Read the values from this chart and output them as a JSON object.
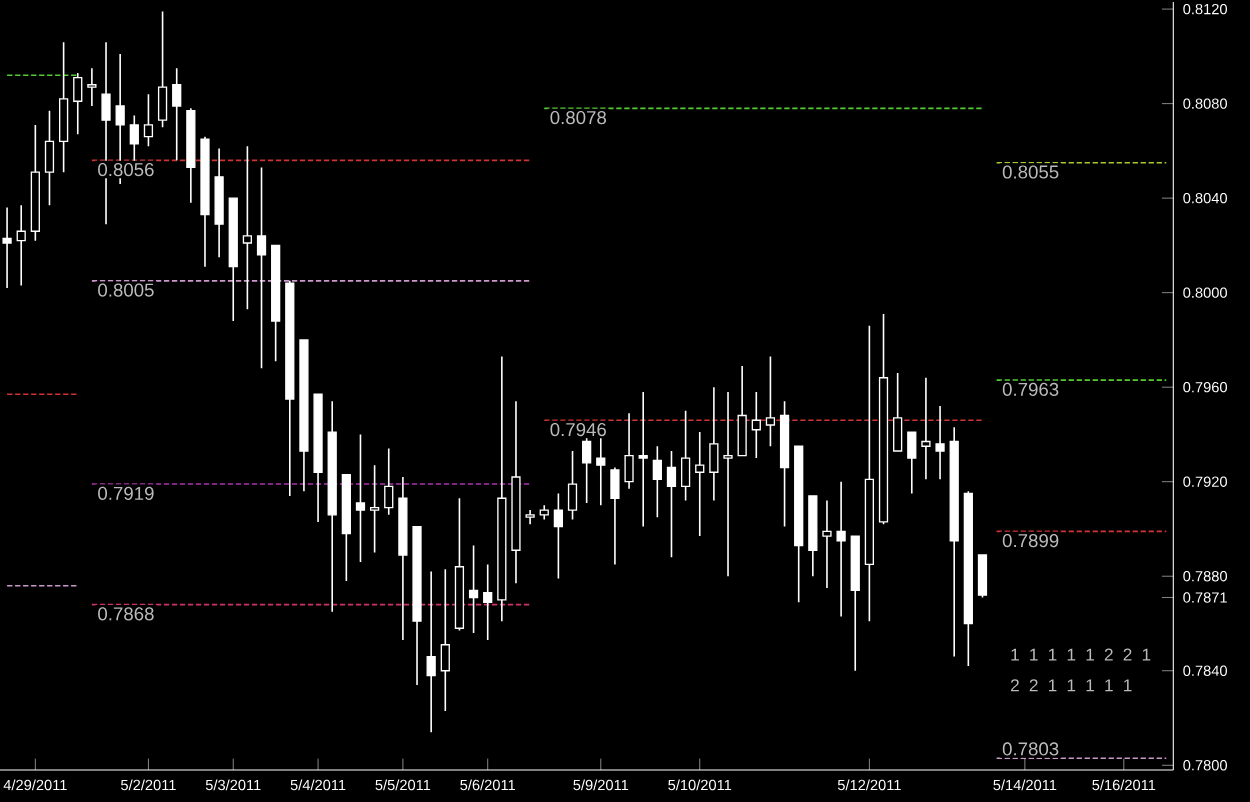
{
  "chart_data": {
    "type": "candlestick",
    "color": "#ffffff",
    "categories": [
      null,
      null,
      "4/29/2011",
      null,
      null,
      null,
      null,
      null,
      null,
      null,
      "5/2/2011",
      null,
      null,
      null,
      null,
      null,
      "5/3/2011",
      null,
      null,
      null,
      null,
      null,
      "5/4/2011",
      null,
      null,
      null,
      null,
      null,
      "5/5/2011",
      null,
      null,
      null,
      null,
      null,
      "5/6/2011",
      null,
      null,
      null,
      null,
      null,
      null,
      null,
      "5/9/2011",
      null,
      null,
      null,
      null,
      null,
      null,
      "5/10/2011",
      null,
      null,
      null,
      null,
      null,
      null,
      null,
      null,
      null,
      null,
      null,
      "5/12/2011",
      null,
      null,
      null,
      null,
      null,
      null,
      null,
      null,
      null,
      null,
      "5/14/2011",
      null,
      null,
      null,
      null,
      null,
      null,
      "5/16/2011",
      null,
      null,
      null
    ],
    "ohlc": [
      [
        0.8023,
        0.8036,
        0.8002,
        0.8021
      ],
      [
        0.8022,
        0.8037,
        0.8003,
        0.8026
      ],
      [
        0.8026,
        0.8071,
        0.8022,
        0.8051
      ],
      [
        0.8051,
        0.8077,
        0.8037,
        0.8064
      ],
      [
        0.8064,
        0.8106,
        0.8051,
        0.8082
      ],
      [
        0.8081,
        0.8093,
        0.8067,
        0.8091
      ],
      [
        0.8087,
        0.8095,
        0.8079,
        0.8088
      ],
      [
        0.8084,
        0.8106,
        0.8029,
        0.8073
      ],
      [
        0.8079,
        0.8101,
        0.8046,
        0.8071
      ],
      [
        0.8071,
        0.8075,
        0.805,
        0.8063
      ],
      [
        0.8066,
        0.8084,
        0.8062,
        0.8071
      ],
      [
        0.8073,
        0.8119,
        0.807,
        0.8087
      ],
      [
        0.8088,
        0.8095,
        0.8056,
        0.8079
      ],
      [
        0.8077,
        0.8078,
        0.8038,
        0.8053
      ],
      [
        0.8065,
        0.8066,
        0.8011,
        0.8033
      ],
      [
        0.8049,
        0.8061,
        0.8015,
        0.8029
      ],
      [
        0.804,
        0.804,
        0.7988,
        0.8011
      ],
      [
        0.8021,
        0.8062,
        0.7993,
        0.8024
      ],
      [
        0.8024,
        0.8053,
        0.7968,
        0.8016
      ],
      [
        0.802,
        0.802,
        0.7971,
        0.7988
      ],
      [
        0.8004,
        0.8005,
        0.7914,
        0.7955
      ],
      [
        0.798,
        0.798,
        0.7916,
        0.7933
      ],
      [
        0.7957,
        0.7957,
        0.7903,
        0.7924
      ],
      [
        0.7941,
        0.7954,
        0.7865,
        0.7906
      ],
      [
        0.7923,
        0.7923,
        0.7878,
        0.7898
      ],
      [
        0.7911,
        0.794,
        0.7886,
        0.7908
      ],
      [
        0.7908,
        0.7927,
        0.789,
        0.7909
      ],
      [
        0.7909,
        0.7934,
        0.7906,
        0.7918
      ],
      [
        0.7913,
        0.7922,
        0.7853,
        0.7889
      ],
      [
        0.7901,
        0.7901,
        0.7834,
        0.7861
      ],
      [
        0.7846,
        0.7882,
        0.7814,
        0.7838
      ],
      [
        0.784,
        0.7883,
        0.7823,
        0.7851
      ],
      [
        0.7858,
        0.7913,
        0.7857,
        0.7884
      ],
      [
        0.7874,
        0.7893,
        0.7856,
        0.7871
      ],
      [
        0.7873,
        0.7885,
        0.7853,
        0.7869
      ],
      [
        0.787,
        0.7973,
        0.7861,
        0.7913
      ],
      [
        0.7891,
        0.7954,
        0.7877,
        0.7922
      ],
      [
        0.7905,
        0.7908,
        0.7902,
        0.7906
      ],
      [
        0.7906,
        0.791,
        0.7904,
        0.7908
      ],
      [
        0.7908,
        0.7915,
        0.7879,
        0.7901
      ],
      [
        0.7908,
        0.7933,
        0.7904,
        0.7919
      ],
      [
        0.7937,
        0.794,
        0.7911,
        0.7928
      ],
      [
        0.793,
        0.7939,
        0.791,
        0.7927
      ],
      [
        0.7925,
        0.7926,
        0.7885,
        0.7913
      ],
      [
        0.792,
        0.7949,
        0.7917,
        0.7931
      ],
      [
        0.7931,
        0.7958,
        0.7901,
        0.793
      ],
      [
        0.7929,
        0.7935,
        0.7905,
        0.7921
      ],
      [
        0.7926,
        0.7933,
        0.7888,
        0.7918
      ],
      [
        0.7918,
        0.795,
        0.7912,
        0.793
      ],
      [
        0.7924,
        0.7941,
        0.7897,
        0.7927
      ],
      [
        0.7924,
        0.796,
        0.7912,
        0.7936
      ],
      [
        0.793,
        0.7958,
        0.788,
        0.7931
      ],
      [
        0.7931,
        0.7969,
        0.7931,
        0.7948
      ],
      [
        0.7942,
        0.7958,
        0.793,
        0.7946
      ],
      [
        0.7944,
        0.7973,
        0.7935,
        0.7947
      ],
      [
        0.7948,
        0.7954,
        0.7901,
        0.7926
      ],
      [
        0.7935,
        0.7935,
        0.7869,
        0.7893
      ],
      [
        0.7914,
        0.7914,
        0.788,
        0.7891
      ],
      [
        0.7897,
        0.7912,
        0.7875,
        0.7899
      ],
      [
        0.7899,
        0.792,
        0.7863,
        0.7895
      ],
      [
        0.7897,
        0.7897,
        0.784,
        0.7874
      ],
      [
        0.7885,
        0.7986,
        0.7861,
        0.7921
      ],
      [
        0.7903,
        0.7991,
        0.7902,
        0.7964
      ],
      [
        0.7933,
        0.7966,
        0.7933,
        0.7947
      ],
      [
        0.7941,
        0.7941,
        0.7915,
        0.793
      ],
      [
        0.7935,
        0.7964,
        0.7921,
        0.7937
      ],
      [
        0.7936,
        0.7952,
        0.7921,
        0.7933
      ],
      [
        0.7937,
        0.7943,
        0.7846,
        0.7895
      ],
      [
        0.7915,
        0.7916,
        0.7842,
        0.786
      ],
      [
        0.7889,
        0.7889,
        0.7871,
        0.7872
      ],
      null,
      null,
      null,
      null,
      null,
      null,
      null,
      null,
      null,
      null,
      null,
      null,
      null
    ],
    "series": [
      {
        "type": "line",
        "color": "#55cc33",
        "line_style": "dashed",
        "values": [
          0.8092,
          0.8092,
          0.8092,
          0.8092,
          0.8092,
          0.8092,
          null,
          null,
          null,
          null,
          null,
          null,
          null,
          null,
          null,
          null,
          null,
          null,
          null,
          null,
          null,
          null,
          null,
          null,
          null,
          null,
          null,
          null,
          null,
          null,
          null,
          null,
          null,
          null,
          null,
          null,
          null,
          null,
          null,
          null,
          null,
          null,
          null,
          null,
          null,
          null,
          null,
          null,
          null,
          null,
          null,
          null,
          null,
          null,
          null,
          null,
          null,
          null,
          null,
          null,
          null,
          null,
          null,
          null,
          null,
          null,
          null,
          null,
          null,
          null,
          null,
          null,
          null,
          null,
          null,
          null,
          null,
          null,
          null,
          null,
          null,
          null,
          null
        ]
      },
      {
        "type": "line",
        "color": "#cc3333",
        "line_style": "dashed",
        "values": [
          0.7957,
          0.7957,
          0.7957,
          0.7957,
          0.7957,
          0.7957,
          null,
          null,
          null,
          null,
          null,
          null,
          null,
          null,
          null,
          null,
          null,
          null,
          null,
          null,
          null,
          null,
          null,
          null,
          null,
          null,
          null,
          null,
          null,
          null,
          null,
          null,
          null,
          null,
          null,
          null,
          null,
          null,
          null,
          null,
          null,
          null,
          null,
          null,
          null,
          null,
          null,
          null,
          null,
          null,
          null,
          null,
          null,
          null,
          null,
          null,
          null,
          null,
          null,
          null,
          null,
          null,
          null,
          null,
          null,
          null,
          null,
          null,
          null,
          null,
          null,
          null,
          null,
          null,
          null,
          null,
          null,
          null,
          null,
          null,
          null,
          null,
          null
        ]
      },
      {
        "type": "line",
        "color": "#cc99cc",
        "line_style": "dashed",
        "values": [
          0.7876,
          0.7876,
          0.7876,
          0.7876,
          0.7876,
          0.7876,
          null,
          null,
          null,
          null,
          null,
          null,
          null,
          null,
          null,
          null,
          null,
          null,
          null,
          null,
          null,
          null,
          null,
          null,
          null,
          null,
          null,
          null,
          null,
          null,
          null,
          null,
          null,
          null,
          null,
          null,
          null,
          null,
          null,
          null,
          null,
          null,
          null,
          null,
          null,
          null,
          null,
          null,
          null,
          null,
          null,
          null,
          null,
          null,
          null,
          null,
          null,
          null,
          null,
          null,
          null,
          null,
          null,
          null,
          null,
          null,
          null,
          null,
          null,
          null,
          null,
          null,
          null,
          null,
          null,
          null,
          null,
          null,
          null,
          null,
          null,
          null,
          null
        ]
      },
      {
        "type": "line",
        "color": "#cc3333",
        "line_style": "dashed",
        "values": [
          null,
          null,
          null,
          null,
          null,
          null,
          0.8056,
          0.8056,
          0.8056,
          0.8056,
          0.8056,
          0.8056,
          0.8056,
          0.8056,
          0.8056,
          0.8056,
          0.8056,
          0.8056,
          0.8056,
          0.8056,
          0.8056,
          0.8056,
          0.8056,
          0.8056,
          0.8056,
          0.8056,
          0.8056,
          0.8056,
          0.8056,
          0.8056,
          0.8056,
          0.8056,
          0.8056,
          0.8056,
          0.8056,
          0.8056,
          0.8056,
          0.8056,
          null,
          null,
          null,
          null,
          null,
          null,
          null,
          null,
          null,
          null,
          null,
          null,
          null,
          null,
          null,
          null,
          null,
          null,
          null,
          null,
          null,
          null,
          null,
          null,
          null,
          null,
          null,
          null,
          null,
          null,
          null,
          null,
          null,
          null,
          null,
          null,
          null,
          null,
          null,
          null,
          null,
          null,
          null,
          null,
          null
        ]
      },
      {
        "type": "line",
        "color": "#cc99cc",
        "line_style": "dashed",
        "values": [
          null,
          null,
          null,
          null,
          null,
          null,
          0.8005,
          0.8005,
          0.8005,
          0.8005,
          0.8005,
          0.8005,
          0.8005,
          0.8005,
          0.8005,
          0.8005,
          0.8005,
          0.8005,
          0.8005,
          0.8005,
          0.8005,
          0.8005,
          0.8005,
          0.8005,
          0.8005,
          0.8005,
          0.8005,
          0.8005,
          0.8005,
          0.8005,
          0.8005,
          0.8005,
          0.8005,
          0.8005,
          0.8005,
          0.8005,
          0.8005,
          0.8005,
          null,
          null,
          null,
          null,
          null,
          null,
          null,
          null,
          null,
          null,
          null,
          null,
          null,
          null,
          null,
          null,
          null,
          null,
          null,
          null,
          null,
          null,
          null,
          null,
          null,
          null,
          null,
          null,
          null,
          null,
          null,
          null,
          null,
          null,
          null,
          null,
          null,
          null,
          null,
          null,
          null,
          null,
          null,
          null,
          null
        ]
      },
      {
        "type": "line",
        "color": "#aa33aa",
        "line_style": "dashed",
        "values": [
          null,
          null,
          null,
          null,
          null,
          null,
          0.7919,
          0.7919,
          0.7919,
          0.7919,
          0.7919,
          0.7919,
          0.7919,
          0.7919,
          0.7919,
          0.7919,
          0.7919,
          0.7919,
          0.7919,
          0.7919,
          0.7919,
          0.7919,
          0.7919,
          0.7919,
          0.7919,
          0.7919,
          0.7919,
          0.7919,
          0.7919,
          0.7919,
          0.7919,
          0.7919,
          0.7919,
          0.7919,
          0.7919,
          0.7919,
          0.7919,
          0.7919,
          null,
          null,
          null,
          null,
          null,
          null,
          null,
          null,
          null,
          null,
          null,
          null,
          null,
          null,
          null,
          null,
          null,
          null,
          null,
          null,
          null,
          null,
          null,
          null,
          null,
          null,
          null,
          null,
          null,
          null,
          null,
          null,
          null,
          null,
          null,
          null,
          null,
          null,
          null,
          null,
          null,
          null,
          null,
          null,
          null
        ]
      },
      {
        "type": "line",
        "color": "#cc3366",
        "line_style": "dashed",
        "values": [
          null,
          null,
          null,
          null,
          null,
          null,
          0.7868,
          0.7868,
          0.7868,
          0.7868,
          0.7868,
          0.7868,
          0.7868,
          0.7868,
          0.7868,
          0.7868,
          0.7868,
          0.7868,
          0.7868,
          0.7868,
          0.7868,
          0.7868,
          0.7868,
          0.7868,
          0.7868,
          0.7868,
          0.7868,
          0.7868,
          0.7868,
          0.7868,
          0.7868,
          0.7868,
          0.7868,
          0.7868,
          0.7868,
          0.7868,
          0.7868,
          0.7868,
          null,
          null,
          null,
          null,
          null,
          null,
          null,
          null,
          null,
          null,
          null,
          null,
          null,
          null,
          null,
          null,
          null,
          null,
          null,
          null,
          null,
          null,
          null,
          null,
          null,
          null,
          null,
          null,
          null,
          null,
          null,
          null,
          null,
          null,
          null,
          null,
          null,
          null,
          null,
          null,
          null,
          null,
          null,
          null,
          null
        ]
      },
      {
        "type": "line",
        "color": "#55cc33",
        "line_style": "dashed",
        "values": [
          null,
          null,
          null,
          null,
          null,
          null,
          null,
          null,
          null,
          null,
          null,
          null,
          null,
          null,
          null,
          null,
          null,
          null,
          null,
          null,
          null,
          null,
          null,
          null,
          null,
          null,
          null,
          null,
          null,
          null,
          null,
          null,
          null,
          null,
          null,
          null,
          null,
          null,
          0.8078,
          0.8078,
          0.8078,
          0.8078,
          0.8078,
          0.8078,
          0.8078,
          0.8078,
          0.8078,
          0.8078,
          0.8078,
          0.8078,
          0.8078,
          0.8078,
          0.8078,
          0.8078,
          0.8078,
          0.8078,
          0.8078,
          0.8078,
          0.8078,
          0.8078,
          0.8078,
          0.8078,
          0.8078,
          0.8078,
          0.8078,
          0.8078,
          0.8078,
          0.8078,
          0.8078,
          0.8078,
          null,
          null,
          null,
          null,
          null,
          null,
          null,
          null,
          null,
          null,
          null,
          null,
          null
        ]
      },
      {
        "type": "line",
        "color": "#cc3333",
        "line_style": "dashed",
        "values": [
          null,
          null,
          null,
          null,
          null,
          null,
          null,
          null,
          null,
          null,
          null,
          null,
          null,
          null,
          null,
          null,
          null,
          null,
          null,
          null,
          null,
          null,
          null,
          null,
          null,
          null,
          null,
          null,
          null,
          null,
          null,
          null,
          null,
          null,
          null,
          null,
          null,
          null,
          0.7946,
          0.7946,
          0.7946,
          0.7946,
          0.7946,
          0.7946,
          0.7946,
          0.7946,
          0.7946,
          0.7946,
          0.7946,
          0.7946,
          0.7946,
          0.7946,
          0.7946,
          0.7946,
          0.7946,
          0.7946,
          0.7946,
          0.7946,
          0.7946,
          0.7946,
          0.7946,
          0.7946,
          0.7946,
          0.7946,
          0.7946,
          0.7946,
          0.7946,
          0.7946,
          0.7946,
          0.7946,
          null,
          null,
          null,
          null,
          null,
          null,
          null,
          null,
          null,
          null,
          null,
          null,
          null
        ]
      },
      {
        "type": "line",
        "color": "#aacc33",
        "line_style": "dashed",
        "values": [
          null,
          null,
          null,
          null,
          null,
          null,
          null,
          null,
          null,
          null,
          null,
          null,
          null,
          null,
          null,
          null,
          null,
          null,
          null,
          null,
          null,
          null,
          null,
          null,
          null,
          null,
          null,
          null,
          null,
          null,
          null,
          null,
          null,
          null,
          null,
          null,
          null,
          null,
          null,
          null,
          null,
          null,
          null,
          null,
          null,
          null,
          null,
          null,
          null,
          null,
          null,
          null,
          null,
          null,
          null,
          null,
          null,
          null,
          null,
          null,
          null,
          null,
          null,
          null,
          null,
          null,
          null,
          null,
          null,
          null,
          0.8055,
          0.8055,
          0.8055,
          0.8055,
          0.8055,
          0.8055,
          0.8055,
          0.8055,
          0.8055,
          0.8055,
          0.8055,
          0.8055,
          0.8055
        ]
      },
      {
        "type": "line",
        "color": "#55cc33",
        "line_style": "dashed",
        "values": [
          null,
          null,
          null,
          null,
          null,
          null,
          null,
          null,
          null,
          null,
          null,
          null,
          null,
          null,
          null,
          null,
          null,
          null,
          null,
          null,
          null,
          null,
          null,
          null,
          null,
          null,
          null,
          null,
          null,
          null,
          null,
          null,
          null,
          null,
          null,
          null,
          null,
          null,
          null,
          null,
          null,
          null,
          null,
          null,
          null,
          null,
          null,
          null,
          null,
          null,
          null,
          null,
          null,
          null,
          null,
          null,
          null,
          null,
          null,
          null,
          null,
          null,
          null,
          null,
          null,
          null,
          null,
          null,
          null,
          null,
          0.7963,
          0.7963,
          0.7963,
          0.7963,
          0.7963,
          0.7963,
          0.7963,
          0.7963,
          0.7963,
          0.7963,
          0.7963,
          0.7963,
          0.7963
        ]
      },
      {
        "type": "line",
        "color": "#cc3333",
        "line_style": "dashed",
        "values": [
          null,
          null,
          null,
          null,
          null,
          null,
          null,
          null,
          null,
          null,
          null,
          null,
          null,
          null,
          null,
          null,
          null,
          null,
          null,
          null,
          null,
          null,
          null,
          null,
          null,
          null,
          null,
          null,
          null,
          null,
          null,
          null,
          null,
          null,
          null,
          null,
          null,
          null,
          null,
          null,
          null,
          null,
          null,
          null,
          null,
          null,
          null,
          null,
          null,
          null,
          null,
          null,
          null,
          null,
          null,
          null,
          null,
          null,
          null,
          null,
          null,
          null,
          null,
          null,
          null,
          null,
          null,
          null,
          null,
          null,
          0.7899,
          0.7899,
          0.7899,
          0.7899,
          0.7899,
          0.7899,
          0.7899,
          0.7899,
          0.7899,
          0.7899,
          0.7899,
          0.7899,
          0.7899
        ]
      },
      {
        "type": "line",
        "color": "#cc99cc",
        "line_style": "dashed",
        "values": [
          null,
          null,
          null,
          null,
          null,
          null,
          null,
          null,
          null,
          null,
          null,
          null,
          null,
          null,
          null,
          null,
          null,
          null,
          null,
          null,
          null,
          null,
          null,
          null,
          null,
          null,
          null,
          null,
          null,
          null,
          null,
          null,
          null,
          null,
          null,
          null,
          null,
          null,
          null,
          null,
          null,
          null,
          null,
          null,
          null,
          null,
          null,
          null,
          null,
          null,
          null,
          null,
          null,
          null,
          null,
          null,
          null,
          null,
          null,
          null,
          null,
          null,
          null,
          null,
          null,
          null,
          null,
          null,
          null,
          null,
          0.7803,
          0.7803,
          0.7803,
          0.7803,
          0.7803,
          0.7803,
          0.7803,
          0.7803,
          0.7803,
          0.7803,
          0.7803,
          0.7803,
          0.7803
        ]
      }
    ],
    "annotations": [
      {
        "text": "0.8056",
        "y": 0.8056
      },
      {
        "text": "0.8005",
        "y": 0.8005
      },
      {
        "text": "0.7919",
        "y": 0.7919
      },
      {
        "text": "0.7868",
        "y": 0.7868
      },
      {
        "text": "0.8078",
        "y": 0.8078
      },
      {
        "text": "0.7946",
        "y": 0.7946
      },
      {
        "text": "0.8055",
        "y": 0.8055
      },
      {
        "text": "0.7963",
        "y": 0.7963
      },
      {
        "text": "0.7899",
        "y": 0.7899
      },
      {
        "text": "0.7803",
        "y": 0.7803
      },
      "1",
      "1",
      "1",
      "1",
      "1",
      "2",
      "2",
      "1",
      "2",
      "2",
      "1",
      "1",
      "1",
      "1",
      "1"
    ],
    "ylim": [
      0.7798,
      0.8123
    ],
    "yticks": [
      {
        "value": 0.78,
        "label": "0.7800"
      },
      {
        "value": 0.784,
        "label": "0.7840"
      },
      {
        "value": 0.7871,
        "label": "0.7871"
      },
      {
        "value": 0.788,
        "label": "0.7880"
      },
      {
        "value": 0.792,
        "label": "0.7920"
      },
      {
        "value": 0.796,
        "label": "0.7960"
      },
      {
        "value": 0.8,
        "label": "0.8000"
      },
      {
        "value": 0.804,
        "label": "0.8040"
      },
      {
        "value": 0.808,
        "label": "0.8080"
      },
      {
        "value": 0.812,
        "label": "0.8120"
      }
    ]
  }
}
